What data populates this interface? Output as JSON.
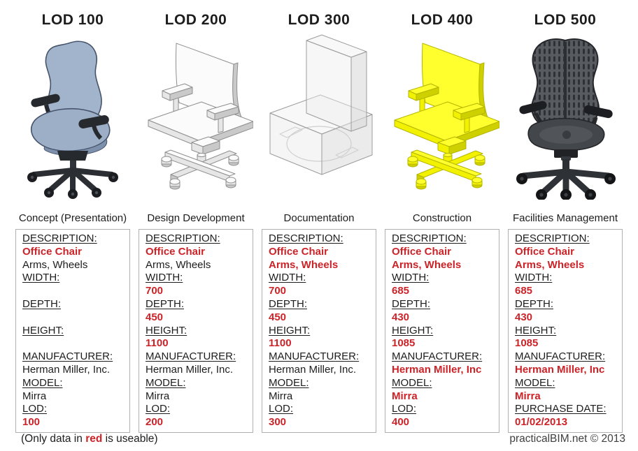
{
  "columns": [
    {
      "lod": "LOD 100",
      "phase": "Concept (Presentation)",
      "chair_style": "rendered-concept-blue-chair",
      "fields": [
        {
          "label": "DESCRIPTION:",
          "values": [
            {
              "text": "Office Chair",
              "red": true
            },
            {
              "text": "Arms, Wheels",
              "red": false
            }
          ]
        },
        {
          "label": "WIDTH:",
          "values": [
            {
              "text": "",
              "red": false
            }
          ]
        },
        {
          "label": "DEPTH:",
          "values": [
            {
              "text": "",
              "red": false
            }
          ]
        },
        {
          "label": "HEIGHT:",
          "values": [
            {
              "text": "",
              "red": false
            }
          ]
        },
        {
          "label": "MANUFACTURER:",
          "values": [
            {
              "text": "Herman Miller, Inc.",
              "red": false
            }
          ]
        },
        {
          "label": "MODEL:",
          "values": [
            {
              "text": "Mirra",
              "red": false
            }
          ]
        },
        {
          "label": "LOD:",
          "values": [
            {
              "text": "100",
              "red": true
            }
          ]
        }
      ]
    },
    {
      "lod": "LOD 200",
      "phase": "Design Development",
      "chair_style": "generic-cad-white-chair",
      "fields": [
        {
          "label": "DESCRIPTION:",
          "values": [
            {
              "text": "Office Chair",
              "red": true
            },
            {
              "text": "Arms, Wheels",
              "red": false
            }
          ]
        },
        {
          "label": "WIDTH:",
          "values": [
            {
              "text": "700",
              "red": true
            }
          ]
        },
        {
          "label": "DEPTH:",
          "values": [
            {
              "text": "450",
              "red": true
            }
          ]
        },
        {
          "label": "HEIGHT:",
          "values": [
            {
              "text": "1100",
              "red": true
            }
          ]
        },
        {
          "label": "MANUFACTURER:",
          "values": [
            {
              "text": "Herman Miller, Inc.",
              "red": false
            }
          ]
        },
        {
          "label": "MODEL:",
          "values": [
            {
              "text": "Mirra",
              "red": false
            }
          ]
        },
        {
          "label": "LOD:",
          "values": [
            {
              "text": "200",
              "red": true
            }
          ]
        }
      ]
    },
    {
      "lod": "LOD 300",
      "phase": "Documentation",
      "chair_style": "transparent-bounding-box-chair",
      "fields": [
        {
          "label": "DESCRIPTION:",
          "values": [
            {
              "text": "Office Chair",
              "red": true
            },
            {
              "text": "Arms, Wheels",
              "red": true
            }
          ]
        },
        {
          "label": "WIDTH:",
          "values": [
            {
              "text": "700",
              "red": true
            }
          ]
        },
        {
          "label": "DEPTH:",
          "values": [
            {
              "text": "450",
              "red": true
            }
          ]
        },
        {
          "label": "HEIGHT:",
          "values": [
            {
              "text": "1100",
              "red": true
            }
          ]
        },
        {
          "label": "MANUFACTURER:",
          "values": [
            {
              "text": "Herman Miller, Inc.",
              "red": false
            }
          ]
        },
        {
          "label": "MODEL:",
          "values": [
            {
              "text": "Mirra",
              "red": false
            }
          ]
        },
        {
          "label": "LOD:",
          "values": [
            {
              "text": "300",
              "red": true
            }
          ]
        }
      ]
    },
    {
      "lod": "LOD 400",
      "phase": "Construction",
      "chair_style": "generic-cad-yellow-chair",
      "fields": [
        {
          "label": "DESCRIPTION:",
          "values": [
            {
              "text": "Office Chair",
              "red": true
            },
            {
              "text": "Arms, Wheels",
              "red": true
            }
          ]
        },
        {
          "label": "WIDTH:",
          "values": [
            {
              "text": "685",
              "red": true
            }
          ]
        },
        {
          "label": "DEPTH:",
          "values": [
            {
              "text": "430",
              "red": true
            }
          ]
        },
        {
          "label": "HEIGHT:",
          "values": [
            {
              "text": "1085",
              "red": true
            }
          ]
        },
        {
          "label": "MANUFACTURER:",
          "values": [
            {
              "text": "Herman Miller, Inc",
              "red": true
            }
          ]
        },
        {
          "label": "MODEL:",
          "values": [
            {
              "text": "Mirra",
              "red": true
            }
          ]
        },
        {
          "label": "LOD:",
          "values": [
            {
              "text": "400",
              "red": true
            }
          ]
        }
      ]
    },
    {
      "lod": "LOD 500",
      "phase": "Facilities Management",
      "chair_style": "photoreal-mirra-gray-chair",
      "fields": [
        {
          "label": "DESCRIPTION:",
          "values": [
            {
              "text": "Office Chair",
              "red": true
            },
            {
              "text": "Arms, Wheels",
              "red": true
            }
          ]
        },
        {
          "label": "WIDTH:",
          "values": [
            {
              "text": "685",
              "red": true
            }
          ]
        },
        {
          "label": "DEPTH:",
          "values": [
            {
              "text": "430",
              "red": true
            }
          ]
        },
        {
          "label": "HEIGHT:",
          "values": [
            {
              "text": "1085",
              "red": true
            }
          ]
        },
        {
          "label": "MANUFACTURER:",
          "values": [
            {
              "text": "Herman Miller, Inc",
              "red": true
            }
          ]
        },
        {
          "label": "MODEL:",
          "values": [
            {
              "text": "Mirra",
              "red": true
            }
          ]
        },
        {
          "label": "PURCHASE DATE:",
          "values": [
            {
              "text": "01/02/2013",
              "red": true
            }
          ]
        }
      ]
    }
  ],
  "footer": {
    "note_prefix": "(Only data in ",
    "note_red": "red",
    "note_suffix": " is useable)",
    "credit": "practicalBIM.net © 2013"
  },
  "colors": {
    "red_text": "#cc2328",
    "box_border": "#b0b0b0",
    "lod100_chair_blue": "#9cafc7",
    "lod400_chair_yellow": "#f2f200"
  }
}
